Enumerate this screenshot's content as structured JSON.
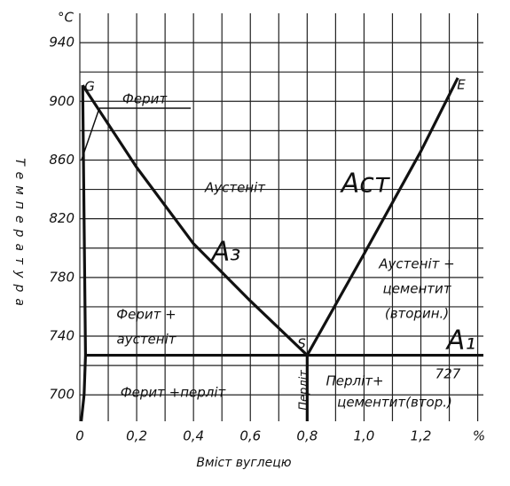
{
  "chart_data": {
    "type": "line",
    "y_unit": "°C",
    "x_unit": "%",
    "ylabel": "Температура",
    "xlabel": "Вміст вуглецю",
    "xlim": [
      0,
      1.42
    ],
    "ylim": [
      682,
      960
    ],
    "xticks": [
      0,
      {
        "value": 0.2,
        "label": "0,2"
      },
      {
        "value": 0.4,
        "label": "0,4"
      },
      {
        "value": 0.6,
        "label": "0,6"
      },
      {
        "value": 0.8,
        "label": "0,8"
      },
      {
        "value": 1.0,
        "label": "1,0"
      },
      {
        "value": 1.2,
        "label": "1,2"
      }
    ],
    "yticks": [
      700,
      740,
      780,
      820,
      860,
      900,
      940
    ],
    "grid": true,
    "series": [
      {
        "color": "#111111",
        "x": [
          0.01,
          0.2,
          0.4,
          0.6,
          0.8
        ],
        "values": [
          911,
          855,
          803,
          764,
          727
        ]
      },
      {
        "color": "#111111",
        "x": [
          0.8,
          1.0,
          1.2,
          1.33
        ],
        "values": [
          727,
          796,
          866,
          916
        ]
      },
      {
        "color": "#111111",
        "x": [
          0.02,
          1.42
        ],
        "values": [
          727,
          727
        ]
      },
      {
        "color": "#111111",
        "x": [
          0.01,
          0.02,
          0.015,
          0.005
        ],
        "values": [
          911,
          727,
          700,
          682
        ]
      },
      {
        "color": "#111111",
        "x": [
          0.8,
          0.8
        ],
        "values": [
          727,
          682
        ]
      }
    ],
    "annotations": [
      "G",
      "S",
      "E",
      "Ферит",
      "Аустеніт",
      "A₃",
      "Aст",
      "Ферит +",
      "аустеніт",
      "Аустеніт +",
      "цементит",
      "(вторин.)",
      "A₁",
      "727",
      "Ферит +перліт",
      "Перліт",
      "Перліт+",
      "цементит(втор.)"
    ]
  }
}
